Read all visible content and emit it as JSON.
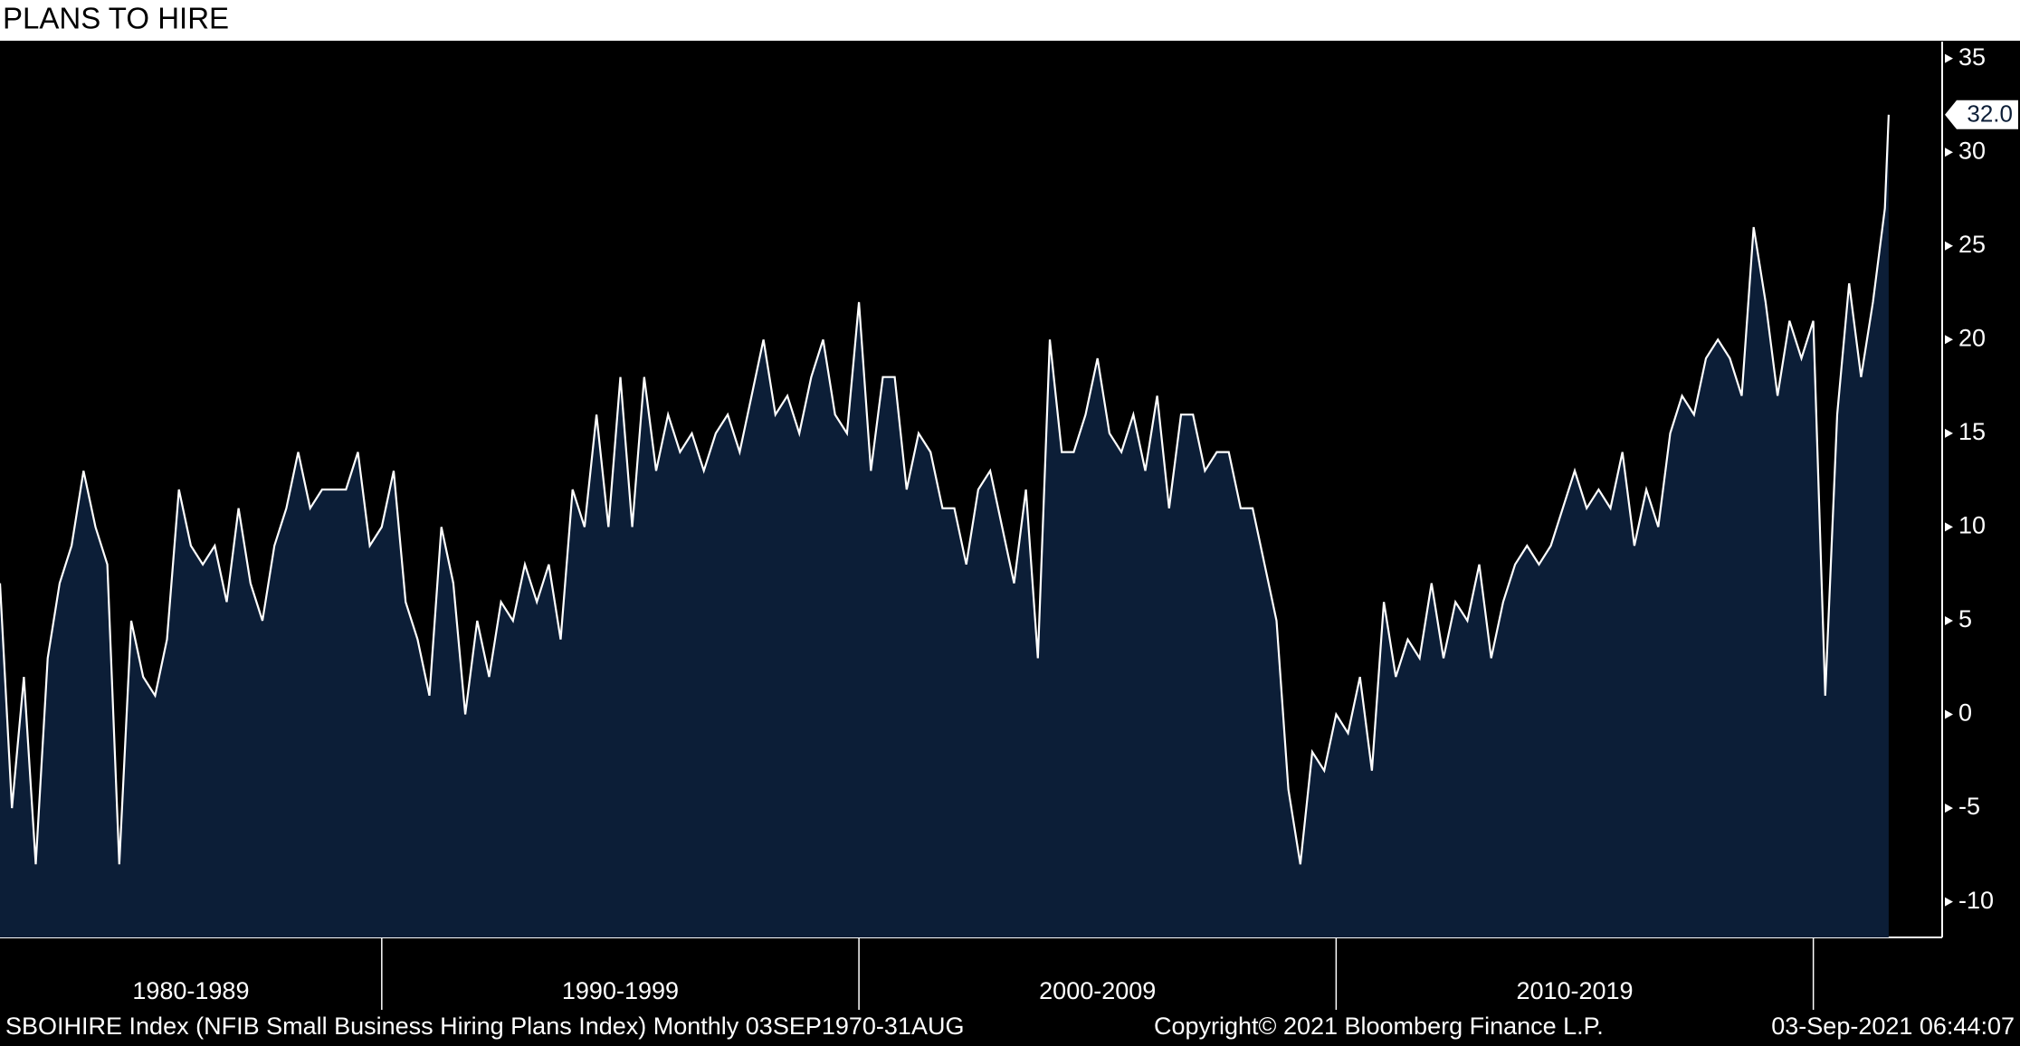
{
  "chart_data": {
    "type": "area",
    "title": "PLANS TO HIRE",
    "x": [
      1982,
      1982.25,
      1982.5,
      1982.75,
      1983,
      1983.25,
      1983.5,
      1983.75,
      1984,
      1984.25,
      1984.5,
      1984.75,
      1985,
      1985.25,
      1985.5,
      1985.75,
      1986,
      1986.25,
      1986.5,
      1986.75,
      1987,
      1987.25,
      1987.5,
      1987.75,
      1988,
      1988.25,
      1988.5,
      1988.75,
      1989,
      1989.25,
      1989.5,
      1989.75,
      1990,
      1990.25,
      1990.5,
      1990.75,
      1991,
      1991.25,
      1991.5,
      1991.75,
      1992,
      1992.25,
      1992.5,
      1992.75,
      1993,
      1993.25,
      1993.5,
      1993.75,
      1994,
      1994.25,
      1994.5,
      1994.75,
      1995,
      1995.25,
      1995.5,
      1995.75,
      1996,
      1996.25,
      1996.5,
      1996.75,
      1997,
      1997.25,
      1997.5,
      1997.75,
      1998,
      1998.25,
      1998.5,
      1998.75,
      1999,
      1999.25,
      1999.5,
      1999.75,
      2000,
      2000.25,
      2000.5,
      2000.75,
      2001,
      2001.25,
      2001.5,
      2001.75,
      2002,
      2002.25,
      2002.5,
      2002.75,
      2003,
      2003.25,
      2003.5,
      2003.75,
      2004,
      2004.25,
      2004.5,
      2004.75,
      2005,
      2005.25,
      2005.5,
      2005.75,
      2006,
      2006.25,
      2006.5,
      2006.75,
      2007,
      2007.25,
      2007.5,
      2007.75,
      2008,
      2008.25,
      2008.5,
      2008.75,
      2009,
      2009.25,
      2009.5,
      2009.75,
      2010,
      2010.25,
      2010.5,
      2010.75,
      2011,
      2011.25,
      2011.5,
      2011.75,
      2012,
      2012.25,
      2012.5,
      2012.75,
      2013,
      2013.25,
      2013.5,
      2013.75,
      2014,
      2014.25,
      2014.5,
      2014.75,
      2015,
      2015.25,
      2015.5,
      2015.75,
      2016,
      2016.25,
      2016.5,
      2016.75,
      2017,
      2017.25,
      2017.5,
      2017.75,
      2018,
      2018.25,
      2018.5,
      2018.75,
      2019,
      2019.25,
      2019.5,
      2019.75,
      2020,
      2020.25,
      2020.5,
      2020.75,
      2021,
      2021.25,
      2021.5,
      2021.58
    ],
    "series": [
      {
        "name": "SBOIHIRE",
        "color": "#ffffff",
        "fill": "#0c1e37",
        "values": [
          7,
          -5,
          2,
          -8,
          3,
          7,
          9,
          13,
          10,
          8,
          -8,
          5,
          2,
          1,
          4,
          12,
          9,
          8,
          9,
          6,
          11,
          7,
          5,
          9,
          11,
          14,
          11,
          12,
          12,
          12,
          14,
          9,
          10,
          13,
          6,
          4,
          1,
          10,
          7,
          0,
          5,
          2,
          6,
          5,
          8,
          6,
          8,
          4,
          12,
          10,
          16,
          10,
          18,
          10,
          18,
          13,
          16,
          14,
          15,
          13,
          15,
          16,
          14,
          17,
          20,
          16,
          17,
          15,
          18,
          20,
          16,
          15,
          22,
          13,
          18,
          18,
          12,
          15,
          14,
          11,
          11,
          8,
          12,
          13,
          10,
          7,
          12,
          3,
          20,
          14,
          14,
          16,
          19,
          15,
          14,
          16,
          13,
          17,
          11,
          16,
          16,
          13,
          14,
          14,
          11,
          11,
          8,
          5,
          -4,
          -8,
          -2,
          -3,
          0,
          -1,
          2,
          -3,
          6,
          2,
          4,
          3,
          7,
          3,
          6,
          5,
          8,
          3,
          6,
          8,
          9,
          8,
          9,
          11,
          13,
          11,
          12,
          11,
          14,
          9,
          12,
          10,
          15,
          17,
          16,
          19,
          20,
          19,
          17,
          26,
          22,
          17,
          21,
          19,
          21,
          1,
          16,
          23,
          18,
          22,
          27,
          32
        ]
      }
    ],
    "current_value": {
      "value": 32,
      "label": "32.0"
    },
    "xlim": [
      1982,
      2022.7
    ],
    "xticks": [
      1990,
      2000,
      2010,
      2020
    ],
    "x_periods": [
      {
        "label": "1980-1989",
        "start": 1980,
        "end": 1990
      },
      {
        "label": "1990-1999",
        "start": 1990,
        "end": 2000
      },
      {
        "label": "2000-2009",
        "start": 2000,
        "end": 2010
      },
      {
        "label": "2010-2019",
        "start": 2010,
        "end": 2020
      }
    ],
    "ylim": [
      -11.9,
      35.9
    ],
    "yticks": [
      -10,
      -5,
      0,
      5,
      10,
      15,
      20,
      25,
      30,
      35
    ],
    "footer": {
      "description": "SBOIHIRE Index (NFIB Small Business Hiring Plans Index)  Monthly 03SEP1970-31AUG",
      "copyright": "Copyright© 2021 Bloomberg Finance L.P.",
      "timestamp": "03-Sep-2021 06:44:07"
    }
  }
}
